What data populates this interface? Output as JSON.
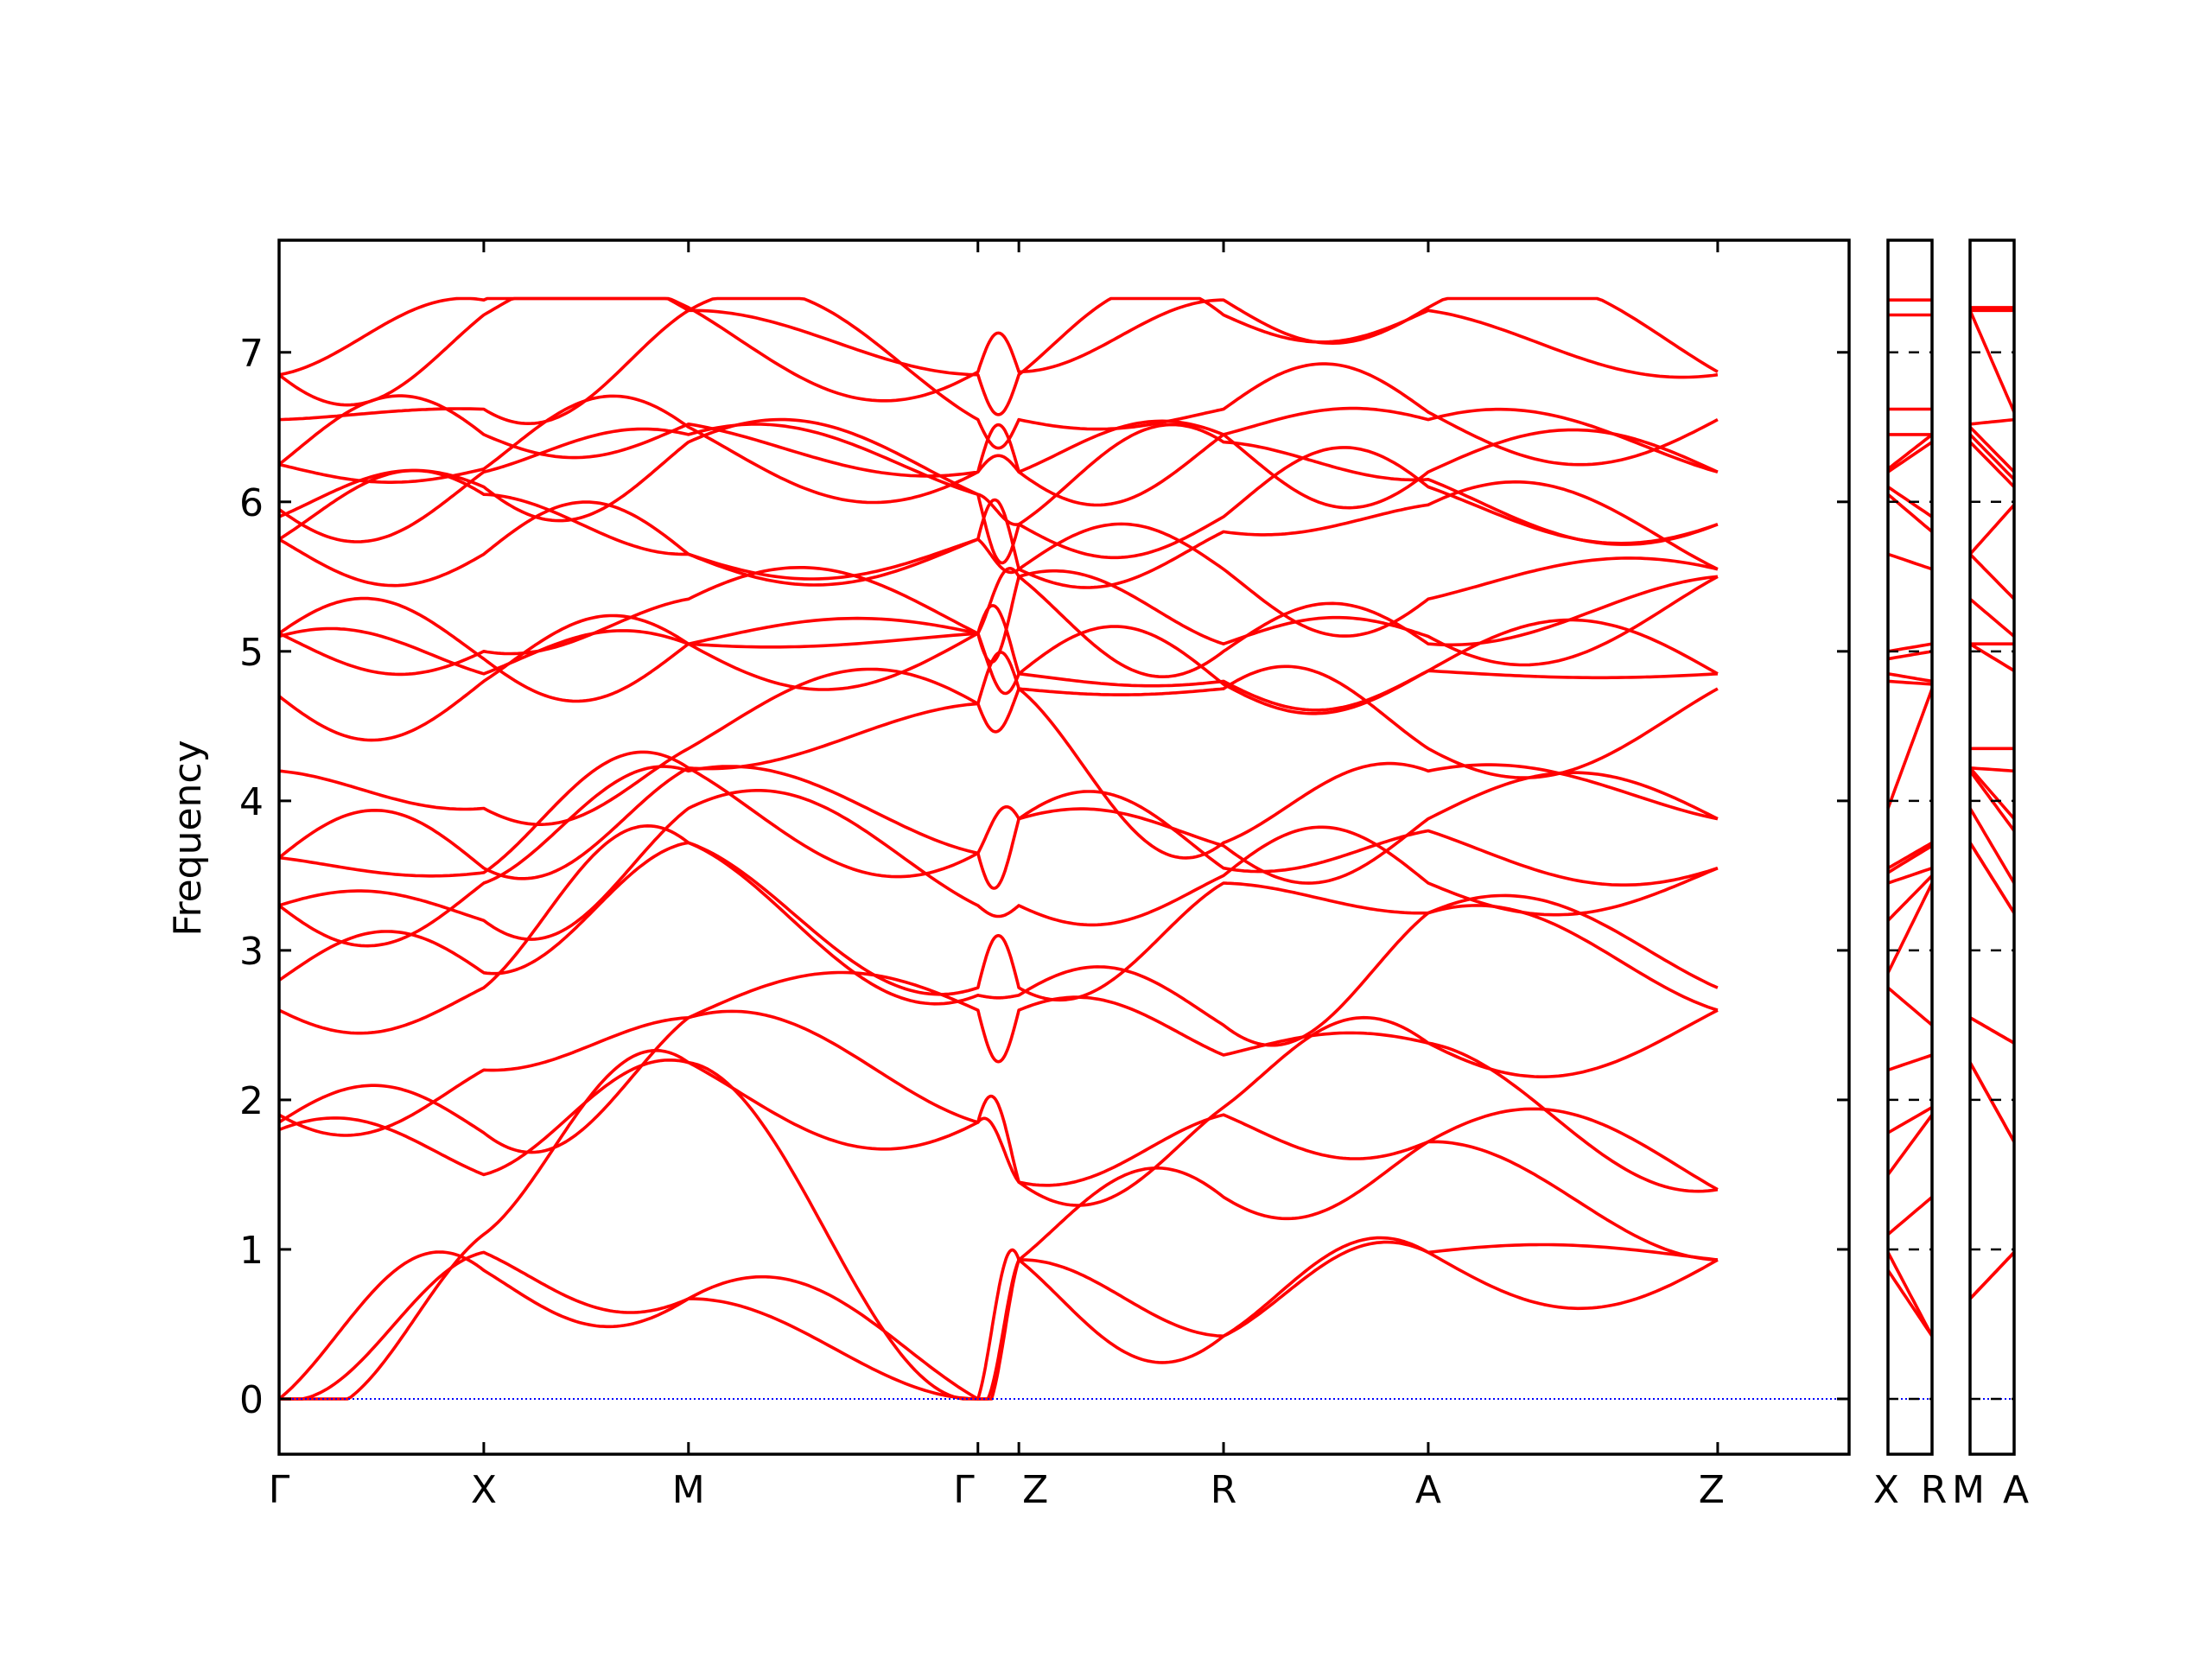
{
  "chart_data": {
    "type": "line",
    "ylabel": "Frequency",
    "ylim": [
      -0.37,
      7.75
    ],
    "y_ticks": [
      0,
      1,
      2,
      3,
      4,
      5,
      6,
      7
    ],
    "colors": {
      "bands": "#ff0000",
      "zero_line": "#0000ff",
      "frame": "#000000"
    },
    "panels": [
      {
        "labels": [
          "Γ",
          "X",
          "M",
          "Γ",
          "Z",
          "R",
          "A",
          "Z"
        ],
        "path_length": 7.67,
        "segments": [
          [
            0,
            1
          ],
          [
            1,
            2
          ],
          [
            2,
            3.414
          ],
          [
            3.414,
            3.614
          ],
          [
            3.614,
            4.614
          ],
          [
            4.614,
            5.614
          ],
          [
            5.614,
            7.028
          ]
        ]
      },
      {
        "labels": [
          "X",
          "R"
        ],
        "path_length": 0.2
      },
      {
        "labels": [
          "M",
          "A"
        ],
        "path_length": 0.2
      }
    ],
    "series": [
      {
        "values_at_high_symmetry": [
          0,
          0.86,
          0.67,
          0,
          0.93,
          0.42,
          0.98,
          0.93
        ]
      },
      {
        "values_at_high_symmetry": [
          0,
          0.98,
          0.67,
          0,
          0.93,
          0.42,
          0.98,
          0.93
        ]
      },
      {
        "values_at_high_symmetry": [
          0,
          1.1,
          2.25,
          0,
          0.93,
          1.35,
          1.72,
          0.93
        ]
      },
      {
        "values_at_high_symmetry": [
          1.8,
          1.5,
          2.25,
          1.85,
          1.45,
          1.9,
          1.72,
          1.4
        ]
      },
      {
        "values_at_high_symmetry": [
          1.85,
          1.78,
          2.55,
          1.85,
          1.45,
          1.95,
          2.38,
          1.4
        ]
      },
      {
        "values_at_high_symmetry": [
          1.9,
          2.2,
          2.55,
          2.6,
          2.6,
          2.3,
          2.38,
          2.6
        ]
      },
      {
        "values_at_high_symmetry": [
          2.6,
          2.75,
          3.72,
          2.7,
          2.7,
          2.5,
          3.25,
          2.6
        ]
      },
      {
        "values_at_high_symmetry": [
          2.8,
          2.85,
          3.72,
          2.75,
          2.75,
          3.45,
          3.25,
          2.75
        ]
      },
      {
        "values_at_high_symmetry": [
          3.3,
          3.2,
          3.95,
          3.3,
          3.3,
          3.5,
          3.45,
          3.55
        ]
      },
      {
        "values_at_high_symmetry": [
          3.3,
          3.45,
          4.2,
          3.65,
          3.88,
          3.55,
          3.8,
          3.55
        ]
      },
      {
        "values_at_high_symmetry": [
          3.62,
          3.52,
          4.22,
          3.65,
          3.88,
          3.7,
          3.88,
          3.88
        ]
      },
      {
        "values_at_high_symmetry": [
          3.62,
          3.55,
          4.22,
          4.65,
          4.75,
          3.72,
          4.2,
          3.88
        ]
      },
      {
        "values_at_high_symmetry": [
          4.2,
          3.95,
          4.35,
          4.65,
          4.75,
          4.75,
          4.35,
          4.75
        ]
      },
      {
        "values_at_high_symmetry": [
          4.7,
          4.8,
          5.05,
          5.12,
          4.85,
          4.78,
          4.87,
          4.85
        ]
      },
      {
        "values_at_high_symmetry": [
          5.1,
          4.85,
          5.05,
          5.12,
          4.85,
          4.8,
          4.87,
          4.85
        ]
      },
      {
        "values_at_high_symmetry": [
          5.12,
          4.95,
          5.05,
          5.12,
          5.5,
          5.0,
          5.05,
          5.5
        ]
      },
      {
        "values_at_high_symmetry": [
          5.12,
          5.0,
          5.35,
          5.12,
          5.5,
          5.05,
          5.1,
          5.5
        ]
      },
      {
        "values_at_high_symmetry": [
          5.75,
          5.65,
          5.65,
          5.75,
          5.55,
          5.55,
          5.35,
          5.55
        ]
      },
      {
        "values_at_high_symmetry": [
          5.75,
          6.05,
          5.65,
          5.75,
          5.55,
          5.8,
          5.98,
          5.55
        ]
      },
      {
        "values_at_high_symmetry": [
          5.9,
          6.1,
          6.4,
          6.05,
          5.85,
          5.9,
          6.1,
          5.85
        ]
      },
      {
        "values_at_high_symmetry": [
          5.95,
          6.2,
          6.45,
          6.05,
          5.85,
          6.4,
          6.15,
          5.85
        ]
      },
      {
        "values_at_high_symmetry": [
          6.25,
          6.22,
          6.5,
          6.2,
          6.2,
          6.45,
          6.2,
          6.2
        ]
      },
      {
        "values_at_high_symmetry": [
          6.25,
          6.45,
          6.52,
          6.2,
          6.2,
          6.45,
          6.55,
          6.2
        ]
      },
      {
        "values_at_high_symmetry": [
          6.55,
          6.62,
          7.28,
          6.55,
          6.55,
          6.62,
          6.6,
          6.55
        ]
      },
      {
        "values_at_high_symmetry": [
          6.85,
          7.25,
          7.28,
          6.85,
          6.85,
          7.25,
          7.28,
          6.85
        ]
      },
      {
        "values_at_high_symmetry": [
          6.85,
          7.35,
          7.3,
          6.87,
          6.87,
          7.35,
          7.3,
          6.87
        ]
      }
    ]
  }
}
